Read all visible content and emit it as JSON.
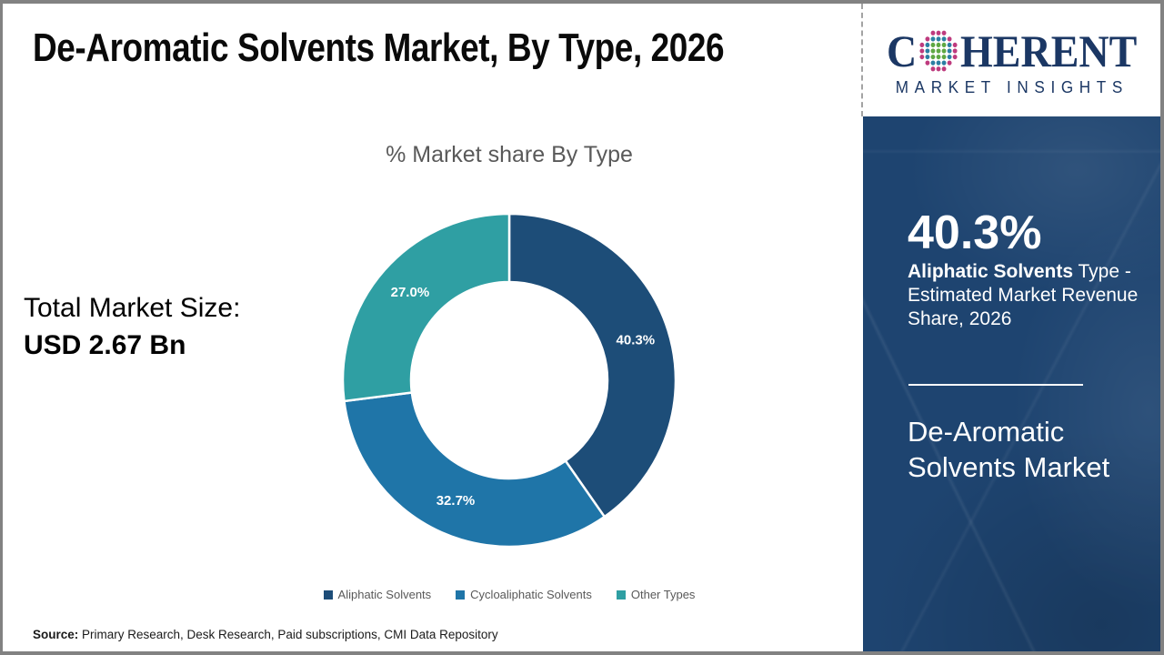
{
  "header": {
    "title": "De-Aromatic Solvents Market, By Type, 2026"
  },
  "logo": {
    "brand_c": "C",
    "brand_rest": "HERENT",
    "tagline": "MARKET INSIGHTS",
    "navy": "#1b3764",
    "globe_colors": {
      "green": "#5fa843",
      "blue": "#2c7fa3",
      "magenta": "#be3b7e"
    }
  },
  "summary": {
    "label": "Total Market Size:",
    "value": "USD 2.67 Bn"
  },
  "chart_data": {
    "type": "pie",
    "subtype": "donut",
    "title": "% Market share By Type",
    "categories": [
      "Aliphatic Solvents",
      "Cycloaliphatic Solvents",
      "Other Types"
    ],
    "values": [
      40.3,
      32.7,
      27.0
    ],
    "labels": [
      "40.3%",
      "32.7%",
      "27.0%"
    ],
    "colors": [
      "#1d4d78",
      "#1f75a8",
      "#2f9fa3"
    ],
    "start_angle_deg": 0,
    "direction": "clockwise",
    "inner_radius_ratio": 0.59,
    "legend_position": "bottom",
    "label_color": "#ffffff"
  },
  "sidebar": {
    "stat_value": "40.3%",
    "stat_label_bold": "Aliphatic Solvents",
    "stat_label_rest": " Type - Estimated Market Revenue Share, 2026",
    "market_name_line1": "De-Aromatic",
    "market_name_line2": "Solvents Market",
    "background_color": "#1e4470"
  },
  "footer": {
    "source_label": "Source:",
    "source_text": " Primary Research, Desk Research, Paid subscriptions, CMI Data Repository"
  }
}
